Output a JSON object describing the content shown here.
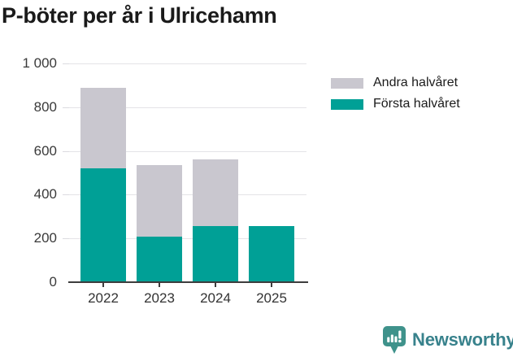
{
  "title": "P-böter per år i Ulricehamn",
  "chart_data": {
    "type": "bar",
    "stacked": true,
    "title": "P-böter per år i Ulricehamn",
    "categories": [
      "2022",
      "2023",
      "2024",
      "2025"
    ],
    "series": [
      {
        "name": "Första halvåret",
        "color": "#00A096",
        "values": [
          520,
          210,
          255,
          255
        ]
      },
      {
        "name": "Andra halvåret",
        "color": "#C9C7CF",
        "values": [
          370,
          325,
          305,
          0
        ]
      }
    ],
    "totals": [
      890,
      535,
      560,
      255
    ],
    "xlabel": "",
    "ylabel": "",
    "ylim": [
      0,
      1000
    ],
    "ytick_interval": 200,
    "ytick_labels": [
      "0",
      "200",
      "400",
      "600",
      "800",
      "1 000"
    ],
    "grid": true,
    "legend_position": "top-right"
  },
  "legend": {
    "items": [
      {
        "label": "Andra halvåret",
        "color": "#C9C7CF"
      },
      {
        "label": "Första halvåret",
        "color": "#00A096"
      }
    ]
  },
  "footer": {
    "brand": "Newsworthy",
    "icon": "newsworthy-bar-chart-speech-bubble-icon",
    "brand_color": "#38828C",
    "icon_color": "#3F928B"
  },
  "colors": {
    "background": "#FFFFFF",
    "grid": "#E4E3E7",
    "axis": "#3D3D3D",
    "title_text": "#1A1A1A",
    "tick_label": "#3A3A3A",
    "bar_teal": "#00A096",
    "bar_gray": "#C9C7CF"
  }
}
